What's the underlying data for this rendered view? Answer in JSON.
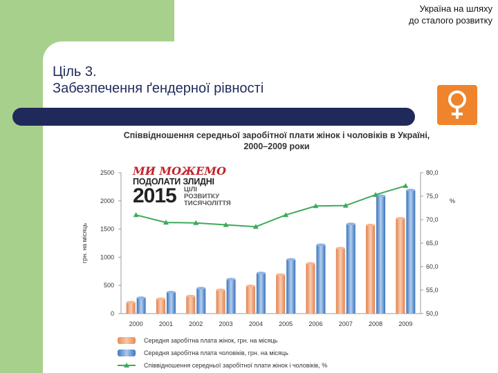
{
  "header": {
    "line1": "Україна на шляху",
    "line2": "до сталого розвитку"
  },
  "slide": {
    "title_line1": "Ціль 3.",
    "title_line2": "Забезпечення ґендерної рівності"
  },
  "goal_icon": {
    "name": "female-symbol-icon",
    "color": "#f0842c"
  },
  "logo": {
    "line1": "МИ МОЖЕМО",
    "line2": "ПОДОЛАТИ ЗЛИДНІ",
    "year": "2015",
    "sub1": "ЦІЛІ",
    "sub2": "РОЗВИТКУ",
    "sub3": "ТИСЯЧОЛІТТЯ"
  },
  "chart_data": {
    "type": "bar",
    "title_line1": "Співвідношення середньої заробітної плати жінок і чоловіків в Україні,",
    "title_line2": "2000–2009 роки",
    "categories": [
      "2000",
      "2001",
      "2002",
      "2003",
      "2004",
      "2005",
      "2006",
      "2007",
      "2008",
      "2009"
    ],
    "ylabel_left": "грн. на місяць",
    "ylabel_right": "%",
    "ylim_left": [
      0,
      2500
    ],
    "yticks_left": [
      "0",
      "500",
      "1000",
      "1500",
      "2000",
      "2500"
    ],
    "ylim_right": [
      50,
      80
    ],
    "yticks_right": [
      "50,0",
      "55,0",
      "60,0",
      "65,0",
      "70,0",
      "75,0",
      "80,0"
    ],
    "series": [
      {
        "name": "Середня заробітна плата жінок, грн. на місяць",
        "kind": "bar",
        "color": "#f0a070",
        "values": [
          200,
          260,
          310,
          420,
          490,
          690,
          890,
          1160,
          1570,
          1690
        ]
      },
      {
        "name": "Середня заробітна плата чоловіків, грн. на місяць",
        "kind": "bar",
        "color": "#5b8fd0",
        "values": [
          280,
          380,
          450,
          610,
          720,
          960,
          1220,
          1590,
          2090,
          2190
        ]
      },
      {
        "name": "Співвідношення середньої заробітної плати жінок і чоловіків, %",
        "kind": "line",
        "axis": "right",
        "color": "#3caa5a",
        "values": [
          71.0,
          69.4,
          69.3,
          68.9,
          68.5,
          71.0,
          72.9,
          73.0,
          75.3,
          77.2
        ]
      }
    ]
  }
}
